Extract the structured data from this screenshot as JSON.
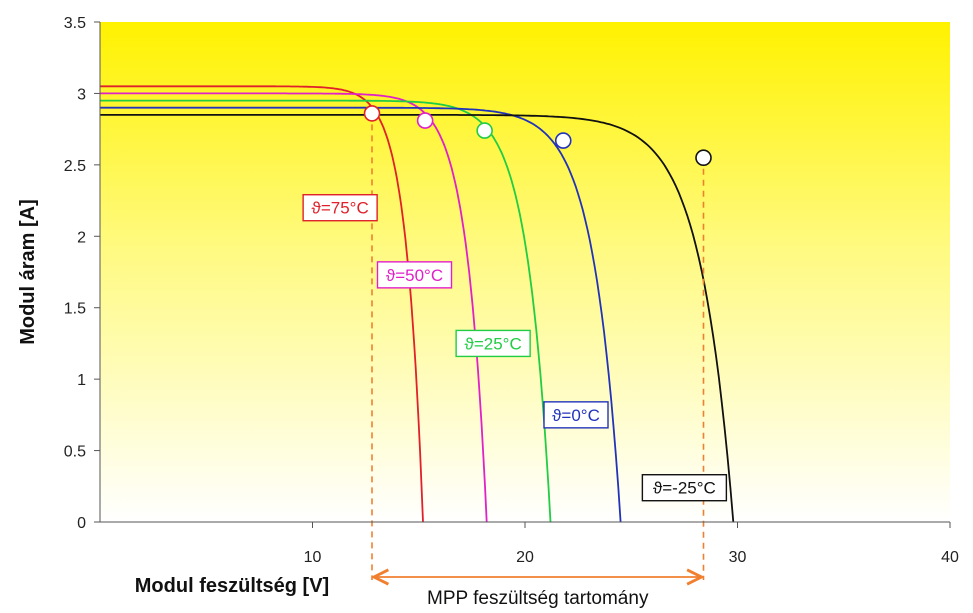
{
  "chart_data": {
    "type": "line",
    "xlabel": "Modul feszültség [V]",
    "ylabel": "Modul áram [A]",
    "xlim": [
      0,
      40
    ],
    "ylim": [
      0,
      3.5
    ],
    "xticks": [
      "10",
      "20",
      "30",
      "40"
    ],
    "yticks": [
      "0",
      "0.5",
      "1",
      "1.5",
      "2",
      "2.5",
      "3",
      "3.5"
    ],
    "grid": false,
    "background": "yellow-to-white vertical gradient",
    "series": [
      {
        "name": "ϑ=75°C",
        "color": "#e0202a",
        "isc": 3.05,
        "voc": 15.2,
        "mpp": [
          12.8,
          2.86
        ]
      },
      {
        "name": "ϑ=50°C",
        "color": "#e020c8",
        "isc": 3.0,
        "voc": 18.2,
        "mpp": [
          15.3,
          2.81
        ]
      },
      {
        "name": "ϑ=25°C",
        "color": "#22cc44",
        "isc": 2.95,
        "voc": 21.2,
        "mpp": [
          18.1,
          2.74
        ]
      },
      {
        "name": "ϑ=0°C",
        "color": "#2233bb",
        "isc": 2.9,
        "voc": 24.5,
        "mpp": [
          21.8,
          2.67
        ]
      },
      {
        "name": "ϑ=-25°C",
        "color": "#111111",
        "isc": 2.85,
        "voc": 29.8,
        "mpp": [
          28.4,
          2.55
        ]
      }
    ],
    "annotation": {
      "text": "MPP feszültség tartomány",
      "from": 12.8,
      "to": 28.4,
      "color": "#f08030"
    }
  }
}
